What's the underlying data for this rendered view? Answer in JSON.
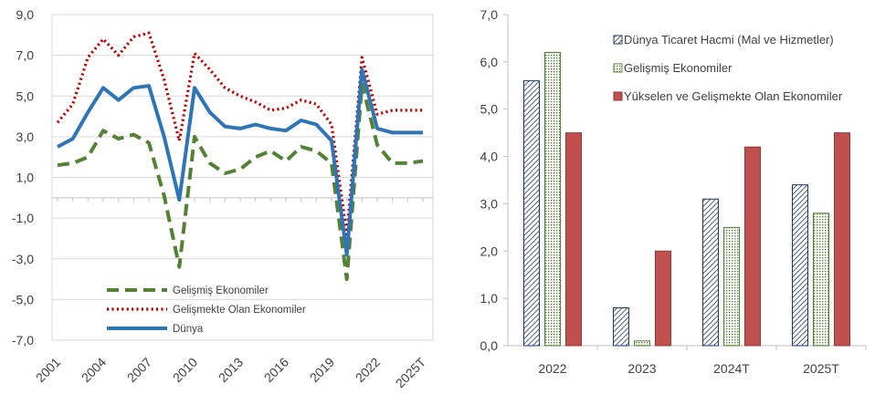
{
  "chart_data": [
    {
      "type": "line",
      "title": "",
      "xlabel": "",
      "ylabel": "",
      "x": [
        2001,
        2002,
        2003,
        2004,
        2005,
        2006,
        2007,
        2008,
        2009,
        2010,
        2011,
        2012,
        2013,
        2014,
        2015,
        2016,
        2017,
        2018,
        2019,
        2020,
        2021,
        2022,
        2023,
        2024,
        2025
      ],
      "x_tick_labels": [
        "2001",
        "2004",
        "2007",
        "2010",
        "2013",
        "2016",
        "2019",
        "2022",
        "2025T"
      ],
      "x_tick_values": [
        2001,
        2004,
        2007,
        2010,
        2013,
        2016,
        2019,
        2022,
        2025
      ],
      "ylim": [
        -7,
        9
      ],
      "y_tick_labels": [
        "9,0",
        "7,0",
        "5,0",
        "3,0",
        "1,0",
        "-1,0",
        "-3,0",
        "-5,0",
        "-7,0"
      ],
      "y_tick_values": [
        9,
        7,
        5,
        3,
        1,
        -1,
        -3,
        -5,
        -7
      ],
      "grid": true,
      "legend": "bottom-center",
      "series": [
        {
          "name": "Gelişmiş Ekonomiler",
          "style": "dashed",
          "color": "#548235",
          "values": [
            1.6,
            1.7,
            2.0,
            3.3,
            2.9,
            3.1,
            2.7,
            0.1,
            -3.4,
            3.0,
            1.7,
            1.2,
            1.4,
            2.0,
            2.3,
            1.8,
            2.5,
            2.3,
            1.7,
            -4.0,
            5.6,
            2.6,
            1.7,
            1.7,
            1.8
          ]
        },
        {
          "name": "Gelişmekte Olan Ekonomiler",
          "style": "dotted",
          "color": "#c00000",
          "values": [
            3.7,
            4.6,
            6.9,
            7.8,
            7.0,
            7.9,
            8.1,
            5.8,
            2.8,
            7.1,
            6.3,
            5.4,
            5.0,
            4.7,
            4.3,
            4.4,
            4.8,
            4.6,
            3.6,
            -1.8,
            6.9,
            4.1,
            4.3,
            4.3,
            4.3
          ]
        },
        {
          "name": "Dünya",
          "style": "solid",
          "color": "#2e75b6",
          "values": [
            2.5,
            2.9,
            4.2,
            5.4,
            4.8,
            5.4,
            5.5,
            3.0,
            -0.1,
            5.4,
            4.2,
            3.5,
            3.4,
            3.6,
            3.4,
            3.3,
            3.8,
            3.6,
            2.8,
            -2.8,
            6.3,
            3.4,
            3.2,
            3.2,
            3.2
          ]
        }
      ]
    },
    {
      "type": "bar",
      "title": "",
      "xlabel": "",
      "ylabel": "",
      "categories": [
        "2022",
        "2023",
        "2024T",
        "2025T"
      ],
      "ylim": [
        0,
        7
      ],
      "y_tick_labels": [
        "7,0",
        "6,0",
        "5,0",
        "4,0",
        "3,0",
        "2,0",
        "1,0",
        "0,0"
      ],
      "y_tick_values": [
        7,
        6,
        5,
        4,
        3,
        2,
        1,
        0
      ],
      "grid": false,
      "legend": "top-right",
      "series": [
        {
          "name": "Dünya Ticaret Hacmi (Mal ve Hizmetler)",
          "pattern": "diagonal-hatch",
          "color": "#1f3864",
          "values": [
            5.6,
            0.8,
            3.1,
            3.4
          ]
        },
        {
          "name": "Gelişmiş Ekonomiler",
          "pattern": "dotted",
          "color": "#548235",
          "values": [
            6.2,
            0.1,
            2.5,
            2.8
          ]
        },
        {
          "name": "Yükselen ve Gelişmekte Olan Ekonomiler",
          "pattern": "solid",
          "color": "#c0504d",
          "values": [
            4.5,
            2.0,
            4.2,
            4.5
          ]
        }
      ]
    }
  ]
}
